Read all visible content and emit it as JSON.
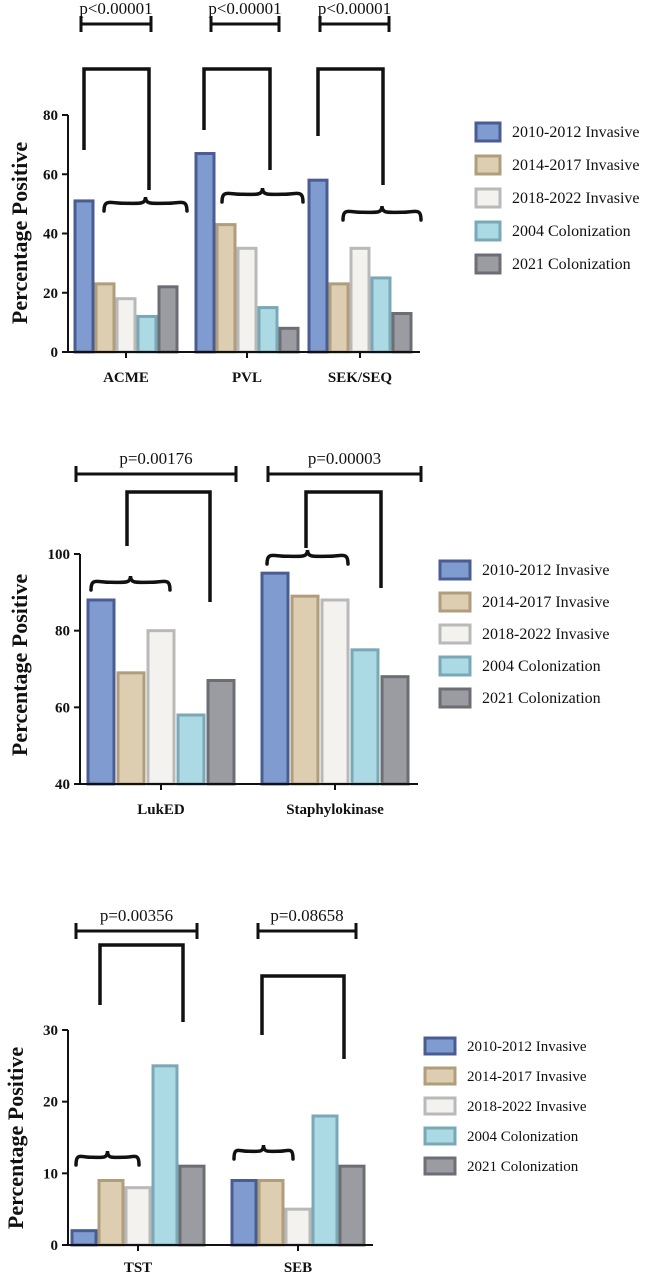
{
  "series_style": [
    {
      "name": "2010-2012 Invasive",
      "fill": "#7f9bd0",
      "stroke": "#4a5d92"
    },
    {
      "name": "2014-2017 Invasive",
      "fill": "#ddcdb1",
      "stroke": "#b09d7c"
    },
    {
      "name": "2018-2022 Invasive",
      "fill": "#f3f2ee",
      "stroke": "#b9b9b9"
    },
    {
      "name": "2004 Colonization",
      "fill": "#abd9e4",
      "stroke": "#7aa8b6"
    },
    {
      "name": "2021 Colonization",
      "fill": "#9a9ca2",
      "stroke": "#6c6e74"
    }
  ],
  "chart_data": [
    {
      "type": "bar",
      "panel": "top",
      "ylabel": "Percentage Positive",
      "ylim": [
        0,
        80
      ],
      "yticks": [
        0,
        20,
        40,
        60,
        80
      ],
      "categories": [
        "ACME",
        "PVL",
        "SEK/SEQ"
      ],
      "legend": [
        "2010-2012 Invasive",
        "2014-2017 Invasive",
        "2018-2022 Invasive",
        "2004 Colonization",
        "2021 Colonization"
      ],
      "series": [
        {
          "name": "2010-2012 Invasive",
          "values": [
            51,
            67,
            58
          ]
        },
        {
          "name": "2014-2017 Invasive",
          "values": [
            23,
            43,
            23
          ]
        },
        {
          "name": "2018-2022 Invasive",
          "values": [
            18,
            35,
            35
          ]
        },
        {
          "name": "2004 Colonization",
          "values": [
            12,
            15,
            25
          ]
        },
        {
          "name": "2021 Colonization",
          "values": [
            22,
            8,
            13
          ]
        }
      ],
      "annotations": [
        "p<0.00001",
        "p<0.00001",
        "p<0.00001"
      ]
    },
    {
      "type": "bar",
      "panel": "middle",
      "ylabel": "Percentage Positive",
      "ylim": [
        40,
        100
      ],
      "yticks": [
        40,
        60,
        80,
        100
      ],
      "categories": [
        "LukED",
        "Staphylokinase"
      ],
      "legend": [
        "2010-2012 Invasive",
        "2014-2017 Invasive",
        "2018-2022 Invasive",
        "2004 Colonization",
        "2021 Colonization"
      ],
      "series": [
        {
          "name": "2010-2012 Invasive",
          "values": [
            88,
            95
          ]
        },
        {
          "name": "2014-2017 Invasive",
          "values": [
            69,
            89
          ]
        },
        {
          "name": "2018-2022 Invasive",
          "values": [
            80,
            88
          ]
        },
        {
          "name": "2004 Colonization",
          "values": [
            58,
            75
          ]
        },
        {
          "name": "2021 Colonization",
          "values": [
            67,
            68
          ]
        }
      ],
      "annotations": [
        "p=0.00176",
        "p=0.00003"
      ]
    },
    {
      "type": "bar",
      "panel": "bottom",
      "ylabel": "Percentage Positive",
      "ylim": [
        0,
        30
      ],
      "yticks": [
        0,
        10,
        20,
        30
      ],
      "categories": [
        "TST",
        "SEB"
      ],
      "legend": [
        "2010-2012 Invasive",
        "2014-2017 Invasive",
        "2018-2022 Invasive",
        "2004 Colonization",
        "2021 Colonization"
      ],
      "series": [
        {
          "name": "2010-2012 Invasive",
          "values": [
            2,
            9
          ]
        },
        {
          "name": "2014-2017 Invasive",
          "values": [
            9,
            9
          ]
        },
        {
          "name": "2018-2022 Invasive",
          "values": [
            8,
            5
          ]
        },
        {
          "name": "2004 Colonization",
          "values": [
            25,
            18
          ]
        },
        {
          "name": "2021 Colonization",
          "values": [
            11,
            11
          ]
        }
      ],
      "annotations": [
        "p=0.00356",
        "p=0.08658"
      ]
    }
  ]
}
